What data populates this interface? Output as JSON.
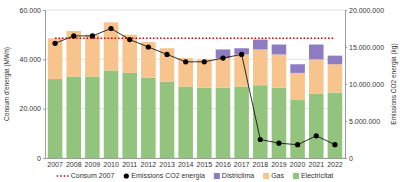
{
  "chart_data": {
    "type": "bar",
    "stacked": true,
    "grid": true,
    "legend": "bottom",
    "y_label": "Consum d'energia (MWh)",
    "y2_label": "Emissions CO2 energia (kg)",
    "categories": [
      "2007",
      "2008",
      "2009",
      "2010",
      "2011",
      "2012",
      "2013",
      "2014",
      "2015",
      "2016",
      "2017",
      "2018",
      "2019",
      "2020",
      "2021",
      "2022"
    ],
    "ylim": [
      0,
      60000
    ],
    "yticks": [
      0,
      {
        "value": 20000,
        "label": "20.000"
      },
      {
        "value": 40000,
        "label": "40.000"
      },
      {
        "value": 60000,
        "label": "60.000"
      }
    ],
    "y2lim": [
      0,
      20000000
    ],
    "y2ticks": [
      0,
      {
        "value": 5000000,
        "label": "5.000.000"
      },
      {
        "value": 10000000,
        "label": "10.000.000"
      },
      {
        "value": 15000000,
        "label": "15.000.000"
      },
      {
        "value": 20000000,
        "label": "20.000.000"
      }
    ],
    "series": [
      {
        "name": "Consum 2007",
        "type": "line",
        "line_style": "dotted",
        "color": "#cc0000",
        "values": [
          48500,
          48500,
          48500,
          48500,
          48500,
          48500,
          48500,
          48500,
          48500,
          48500,
          48500,
          48500,
          48500,
          48500,
          48500,
          48500
        ]
      },
      {
        "name": "Emissions CO2 energia",
        "type": "line",
        "axis": "y2",
        "marker": "circle",
        "line_style": "solid",
        "color": "#000000",
        "values": [
          15500000,
          16500000,
          16500000,
          17500000,
          16000000,
          15000000,
          14000000,
          13000000,
          13000000,
          13500000,
          14000000,
          2500000,
          2000000,
          1800000,
          3000000,
          1800000
        ]
      },
      {
        "name": "Districlima",
        "type": "bar",
        "color": "#8e7cc3",
        "values": [
          0,
          0,
          0,
          0,
          0,
          0,
          0,
          0,
          0,
          3500,
          2500,
          4000,
          4000,
          3500,
          6000,
          3500
        ]
      },
      {
        "name": "Gas",
        "type": "bar",
        "color": "#f6c48c",
        "values": [
          16500,
          18500,
          17000,
          19500,
          15500,
          14500,
          13500,
          11500,
          11500,
          12000,
          13000,
          14500,
          13500,
          11000,
          14000,
          11500
        ]
      },
      {
        "name": "Electricitat",
        "type": "bar",
        "color": "#93c47d",
        "values": [
          32000,
          33000,
          33000,
          35500,
          34500,
          32500,
          31000,
          29000,
          28500,
          28500,
          29000,
          29500,
          28500,
          23500,
          26000,
          26500
        ]
      }
    ]
  }
}
